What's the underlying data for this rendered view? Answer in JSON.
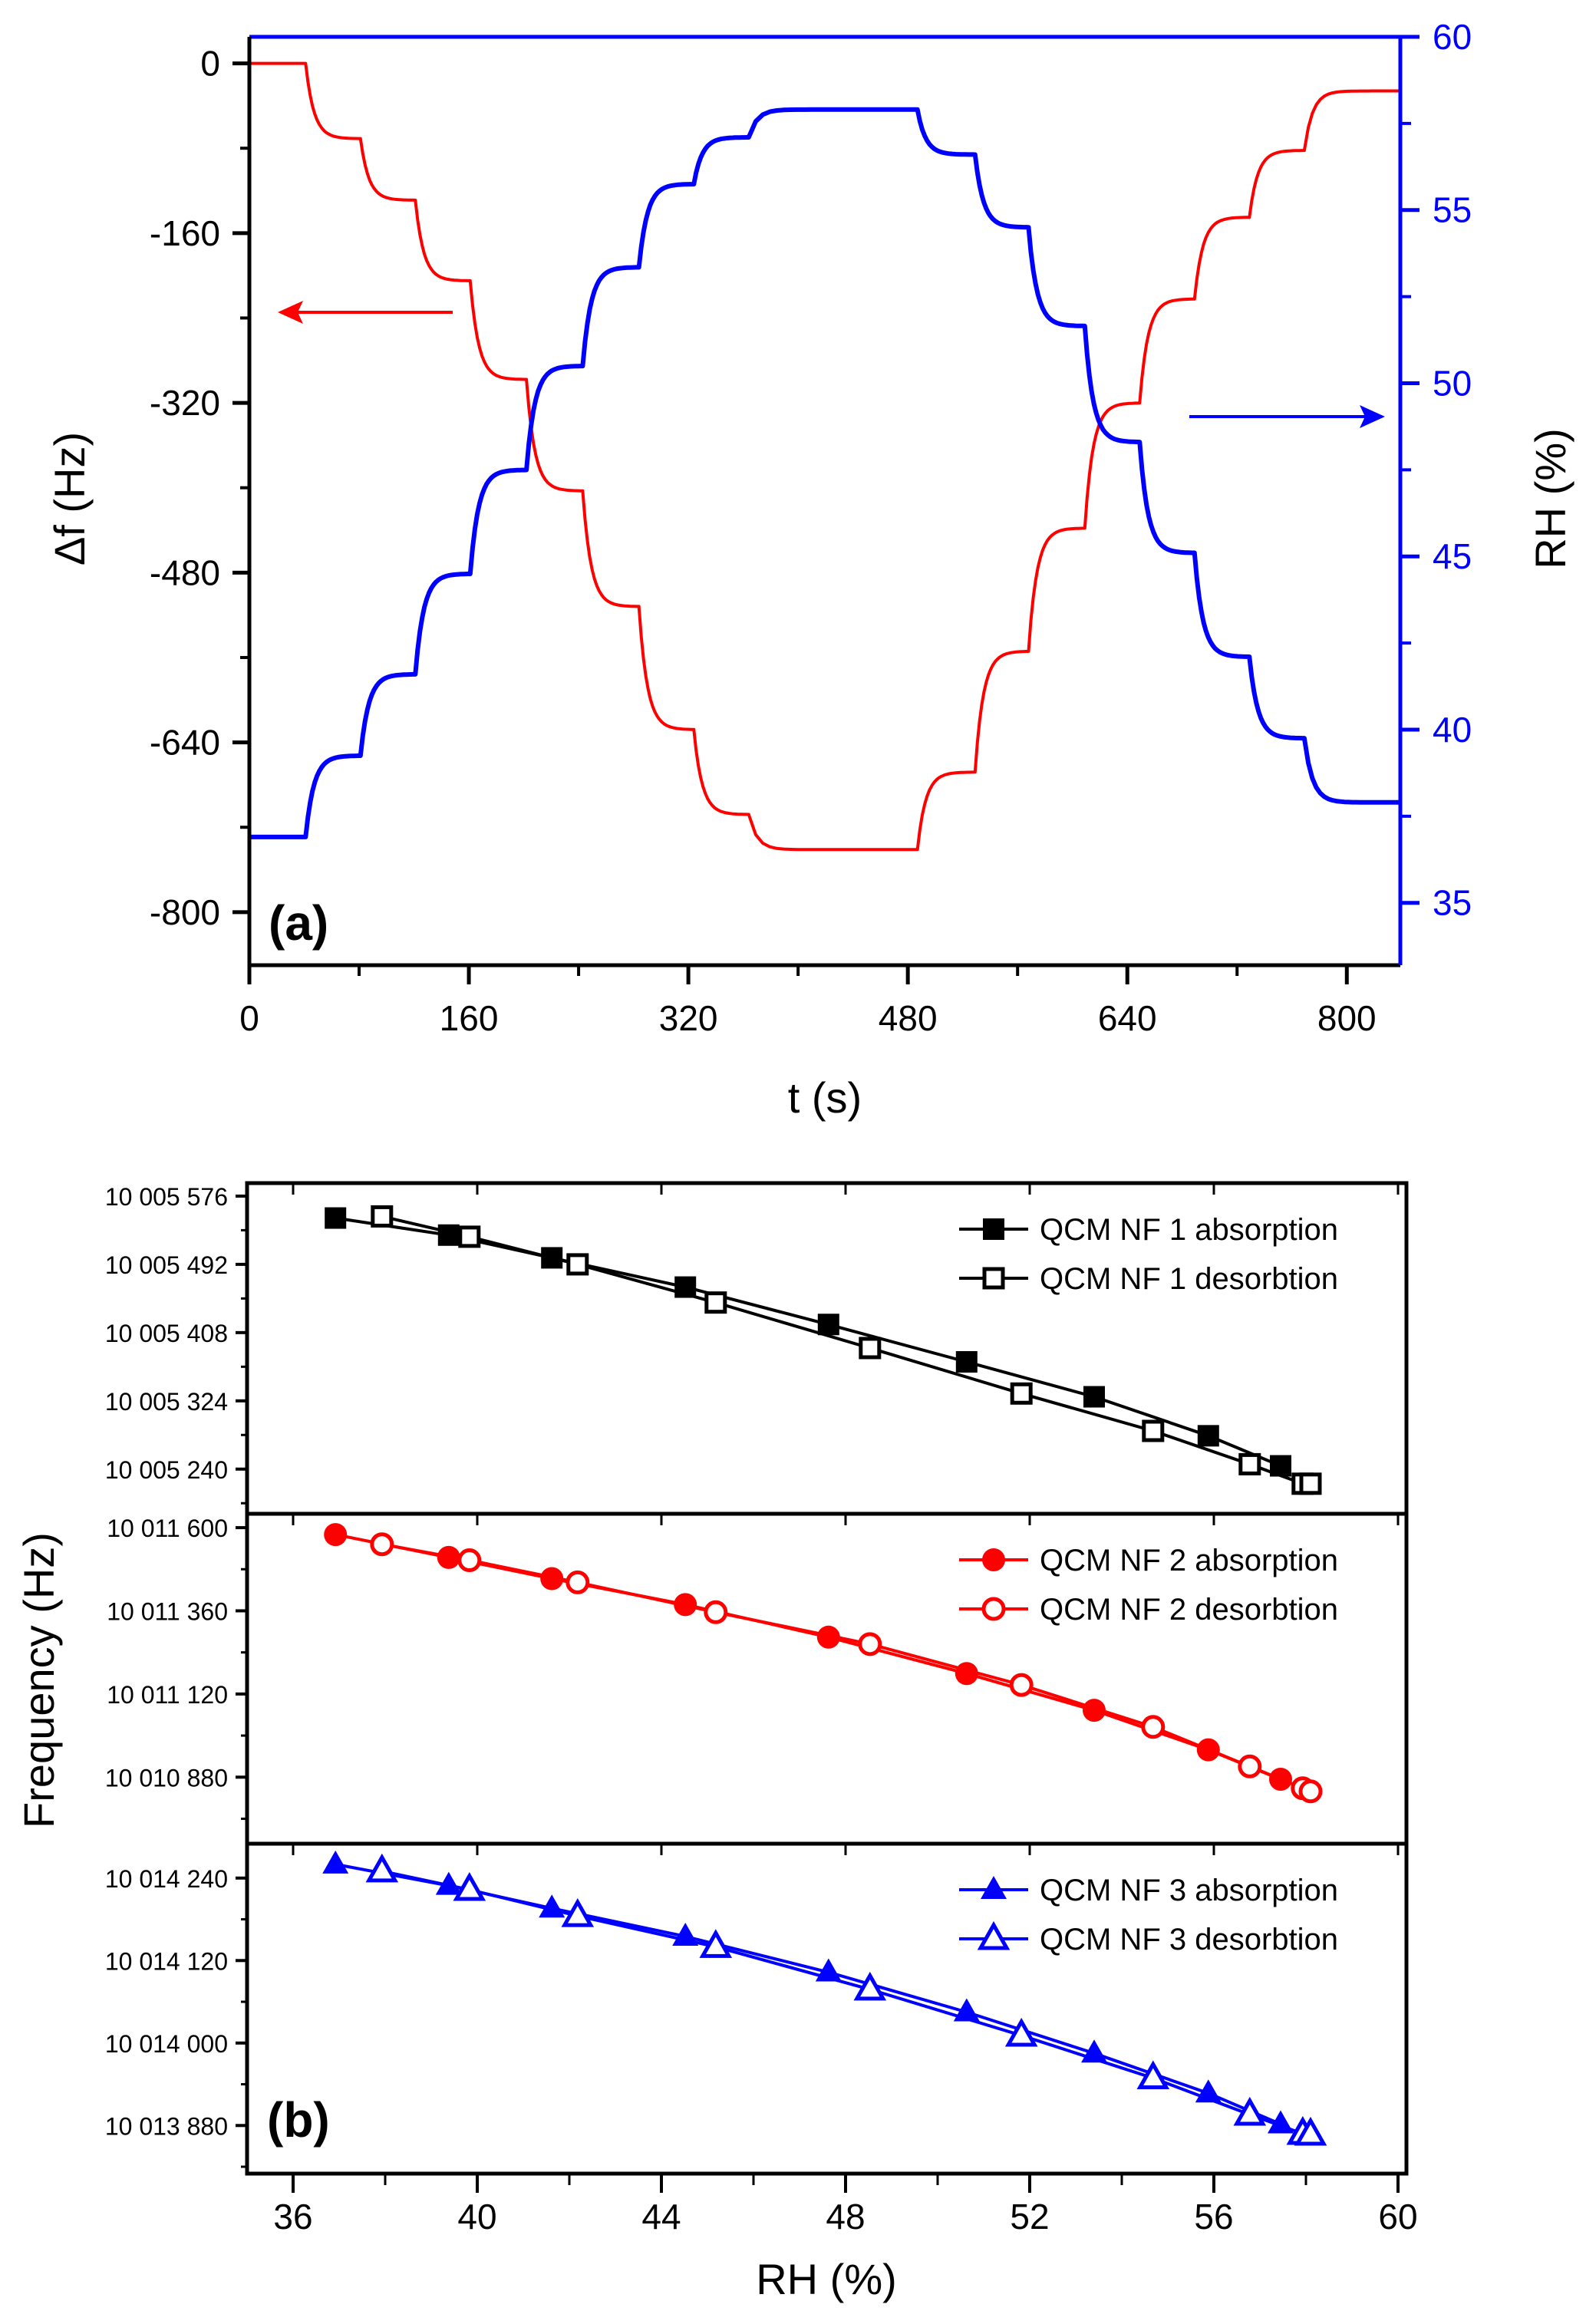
{
  "chart_data": [
    {
      "panel": "(a)",
      "type": "line",
      "xlabel": "t (s)",
      "ylabel": "Δf (Hz)",
      "y2label": "RH (%)",
      "xlim": [
        0,
        839
      ],
      "ylim": [
        -850,
        25
      ],
      "y2lim": [
        33.2,
        60
      ],
      "xticks": [
        0,
        160,
        320,
        480,
        640,
        800
      ],
      "yticks": [
        0,
        -160,
        -320,
        -480,
        -640,
        -800
      ],
      "y2ticks": [
        35,
        40,
        45,
        50,
        55,
        60
      ],
      "grid": false,
      "annotations": [
        {
          "text": "←",
          "meaning": "red curve refers to left axis (Δf)"
        },
        {
          "text": "→",
          "meaning": "blue curve refers to right axis (RH)"
        }
      ],
      "series": [
        {
          "name": "Δf",
          "axis": "left",
          "color": "#ff0000",
          "steps": [
            {
              "t_start": 0,
              "t_end": 41,
              "value": 0
            },
            {
              "t_start": 41,
              "t_end": 81,
              "value": -71
            },
            {
              "t_start": 81,
              "t_end": 121,
              "value": -129
            },
            {
              "t_start": 121,
              "t_end": 161,
              "value": -205
            },
            {
              "t_start": 161,
              "t_end": 202,
              "value": -298
            },
            {
              "t_start": 202,
              "t_end": 243,
              "value": -403
            },
            {
              "t_start": 243,
              "t_end": 284,
              "value": -512
            },
            {
              "t_start": 284,
              "t_end": 324,
              "value": -628
            },
            {
              "t_start": 324,
              "t_end": 364,
              "value": -708
            },
            {
              "t_start": 364,
              "t_end": 487,
              "value": -741
            },
            {
              "t_start": 487,
              "t_end": 529,
              "value": -668
            },
            {
              "t_start": 529,
              "t_end": 568,
              "value": -554
            },
            {
              "t_start": 568,
              "t_end": 609,
              "value": -438
            },
            {
              "t_start": 609,
              "t_end": 649,
              "value": -320
            },
            {
              "t_start": 649,
              "t_end": 689,
              "value": -222
            },
            {
              "t_start": 689,
              "t_end": 729,
              "value": -145
            },
            {
              "t_start": 729,
              "t_end": 769,
              "value": -82
            },
            {
              "t_start": 769,
              "t_end": 839,
              "value": -26
            }
          ]
        },
        {
          "name": "RH",
          "axis": "right",
          "color": "#0000ff",
          "steps": [
            {
              "t_start": 0,
              "t_end": 41,
              "value": 36.9
            },
            {
              "t_start": 41,
              "t_end": 81,
              "value": 39.25
            },
            {
              "t_start": 81,
              "t_end": 121,
              "value": 41.6
            },
            {
              "t_start": 121,
              "t_end": 161,
              "value": 44.5
            },
            {
              "t_start": 161,
              "t_end": 202,
              "value": 47.5
            },
            {
              "t_start": 202,
              "t_end": 243,
              "value": 50.5
            },
            {
              "t_start": 243,
              "t_end": 284,
              "value": 53.35
            },
            {
              "t_start": 284,
              "t_end": 324,
              "value": 55.75
            },
            {
              "t_start": 324,
              "t_end": 364,
              "value": 57.1
            },
            {
              "t_start": 364,
              "t_end": 487,
              "value": 57.9
            },
            {
              "t_start": 487,
              "t_end": 529,
              "value": 56.6
            },
            {
              "t_start": 529,
              "t_end": 568,
              "value": 54.5
            },
            {
              "t_start": 568,
              "t_end": 609,
              "value": 51.65
            },
            {
              "t_start": 609,
              "t_end": 649,
              "value": 48.3
            },
            {
              "t_start": 649,
              "t_end": 689,
              "value": 45.1
            },
            {
              "t_start": 689,
              "t_end": 729,
              "value": 42.1
            },
            {
              "t_start": 729,
              "t_end": 769,
              "value": 39.75
            },
            {
              "t_start": 769,
              "t_end": 839,
              "value": 37.9
            }
          ]
        }
      ]
    },
    {
      "panel": "(b)",
      "type": "line",
      "xlabel": "RH (%)",
      "ylabel": "Frequency (Hz)",
      "xlim": [
        35,
        60.2
      ],
      "xticks": [
        36,
        40,
        44,
        48,
        52,
        56,
        60
      ],
      "grid": false,
      "legend_placement": "top-right",
      "subplots": [
        {
          "ylim": [
            10005185,
            10005592
          ],
          "yticks": [
            10005576,
            10005492,
            10005408,
            10005324,
            10005240
          ],
          "ytick_labels": [
            "10 005 576",
            "10 005 492",
            "10 005 408",
            "10 005 324",
            "10 005 240"
          ],
          "color": "#000000",
          "marker": "square",
          "series": [
            {
              "name": "QCM NF 1 absorption",
              "filled": true,
              "x": [
                36.92,
                39.38,
                41.62,
                44.52,
                47.63,
                50.63,
                53.4,
                55.88,
                57.45
              ],
              "y": [
                10005549,
                10005528,
                10005500,
                10005464,
                10005418,
                10005372,
                10005329,
                10005281,
                10005244
              ]
            },
            {
              "name": "QCM NF 1 desorbtion",
              "filled": false,
              "x": [
                37.93,
                39.83,
                42.18,
                45.18,
                48.53,
                51.82,
                54.68,
                56.78,
                57.93,
                58.1
              ],
              "y": [
                10005551,
                10005526,
                10005492,
                10005445,
                10005389,
                10005333,
                10005287,
                10005246,
                10005222,
                10005222
              ]
            }
          ]
        },
        {
          "ylim": [
            10010688,
            10011640
          ],
          "yticks": [
            10011600,
            10011360,
            10011120,
            10010880
          ],
          "ytick_labels": [
            "10 011 600",
            "10 011 360",
            "10 011 120",
            "10 010 880"
          ],
          "color": "#ff0000",
          "marker": "circle",
          "series": [
            {
              "name": "QCM NF 2 absorption",
              "filled": true,
              "x": [
                36.92,
                39.38,
                41.62,
                44.52,
                47.63,
                50.63,
                53.4,
                55.88,
                57.45
              ],
              "y": [
                10011580,
                10011514,
                10011453,
                10011378,
                10011284,
                10011179,
                10011073,
                10010959,
                10010874
              ]
            },
            {
              "name": "QCM NF 2 desorbtion",
              "filled": false,
              "x": [
                37.93,
                39.83,
                42.18,
                45.18,
                48.53,
                51.82,
                54.68,
                56.78,
                57.93,
                58.1
              ],
              "y": [
                10011552,
                10011506,
                10011442,
                10011356,
                10011264,
                10011146,
                10011025,
                10010911,
                10010848,
                10010839
              ]
            }
          ]
        },
        {
          "ylim": [
            10013810,
            10014290
          ],
          "yticks": [
            10014240,
            10014120,
            10014000,
            10013880
          ],
          "ytick_labels": [
            "10 014 240",
            "10 014 120",
            "10 014 000",
            "10 013 880"
          ],
          "color": "#0000ff",
          "marker": "triangle",
          "series": [
            {
              "name": "QCM NF 3 absorption",
              "filled": true,
              "x": [
                36.92,
                39.38,
                41.62,
                44.52,
                47.63,
                50.63,
                53.4,
                55.88,
                57.45
              ],
              "y": [
                10014260,
                10014229,
                10014196,
                10014155,
                10014103,
                10014045,
                10013985,
                10013927,
                10013882
              ]
            },
            {
              "name": "QCM NF 3 desorbtion",
              "filled": false,
              "x": [
                37.93,
                39.83,
                42.18,
                45.18,
                48.53,
                51.82,
                54.68,
                56.78,
                57.93,
                58.1
              ],
              "y": [
                10014250,
                10014223,
                10014185,
                10014140,
                10014078,
                10014011,
                10013949,
                10013896,
                10013868,
                10013867
              ]
            }
          ]
        }
      ]
    }
  ]
}
